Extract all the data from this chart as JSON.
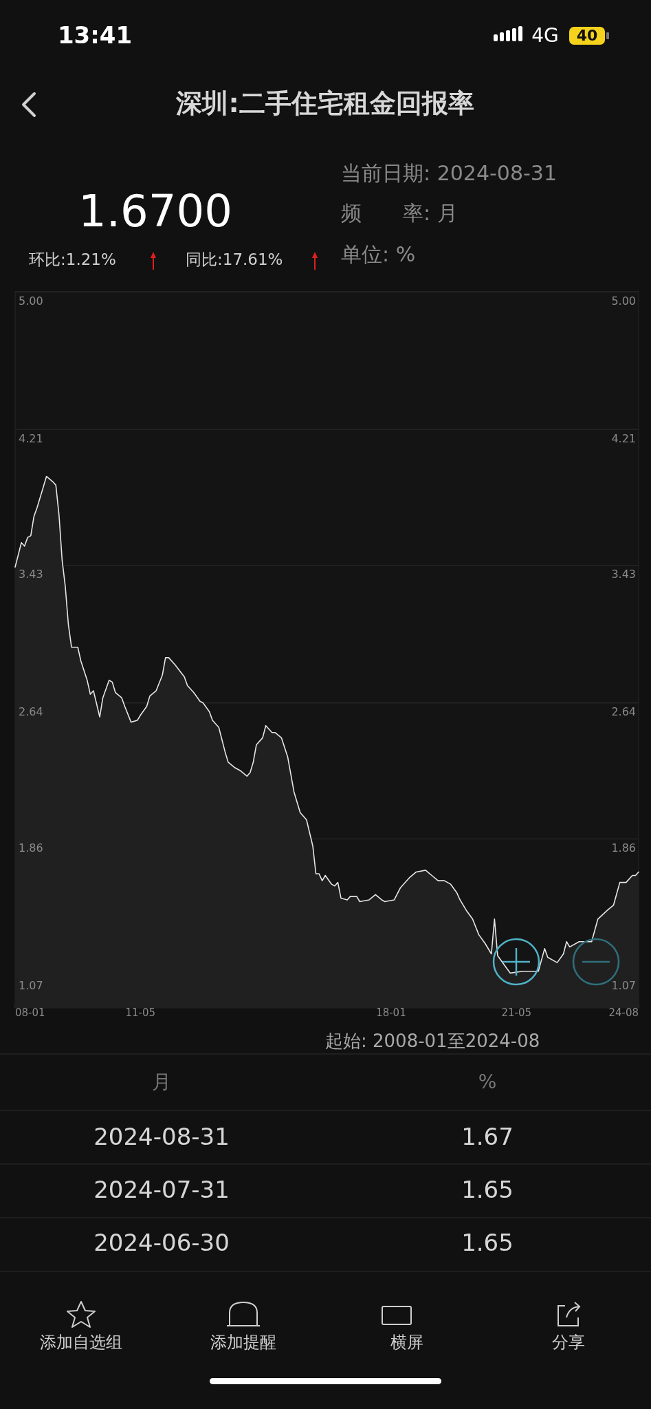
{
  "chart_data": {
    "type": "area",
    "title": "深圳:二手住宅租金回报率",
    "x": [
      "2008-01",
      "2008-03",
      "2008-04",
      "2008-05",
      "2008-06",
      "2008-07",
      "2008-08",
      "2008-10",
      "2008-11",
      "2009-01",
      "2009-02",
      "2009-03",
      "2009-04",
      "2009-05",
      "2009-06",
      "2009-07",
      "2009-09",
      "2009-10",
      "2009-12",
      "2010-01",
      "2010-02",
      "2010-04",
      "2010-05",
      "2010-07",
      "2010-08",
      "2010-09",
      "2010-11",
      "2010-12",
      "2011-02",
      "2011-04",
      "2011-05",
      "2011-07",
      "2011-08",
      "2011-10",
      "2011-12",
      "2012-01",
      "2012-02",
      "2012-04",
      "2012-07",
      "2012-08",
      "2012-10",
      "2012-12",
      "2013-01",
      "2013-03",
      "2013-04",
      "2013-06",
      "2013-08",
      "2013-09",
      "2013-11",
      "2014-01",
      "2014-03",
      "2014-04",
      "2014-05",
      "2014-06",
      "2014-08",
      "2014-09",
      "2014-11",
      "2014-12",
      "2015-02",
      "2015-04",
      "2015-06",
      "2015-08",
      "2015-10",
      "2015-12",
      "2016-01",
      "2016-02",
      "2016-03",
      "2016-04",
      "2016-06",
      "2016-07",
      "2016-08",
      "2016-09",
      "2016-11",
      "2016-12",
      "2017-02",
      "2017-03",
      "2017-06",
      "2017-08",
      "2017-10",
      "2017-11",
      "2018-02",
      "2018-04",
      "2018-07",
      "2018-09",
      "2018-12",
      "2019-02",
      "2019-04",
      "2019-06",
      "2019-08",
      "2019-10",
      "2019-11",
      "2020-01",
      "2020-03",
      "2020-05",
      "2020-07",
      "2020-09",
      "2020-10",
      "2020-11",
      "2021-01",
      "2021-03",
      "2021-07",
      "2021-12",
      "2022-02",
      "2022-03",
      "2022-06",
      "2022-08",
      "2022-09",
      "2022-10",
      "2023-01",
      "2023-03",
      "2023-05",
      "2023-07",
      "2023-10",
      "2023-12",
      "2024-02",
      "2024-04",
      "2024-06",
      "2024-07",
      "2024-08"
    ],
    "series": [
      {
        "color": "#e6e6e6",
        "values": [
          3.42,
          3.56,
          3.54,
          3.59,
          3.6,
          3.71,
          3.76,
          3.88,
          3.94,
          3.91,
          3.89,
          3.72,
          3.46,
          3.31,
          3.09,
          2.96,
          2.96,
          2.88,
          2.77,
          2.69,
          2.71,
          2.56,
          2.67,
          2.77,
          2.76,
          2.7,
          2.67,
          2.62,
          2.53,
          2.54,
          2.57,
          2.62,
          2.68,
          2.71,
          2.8,
          2.9,
          2.9,
          2.86,
          2.79,
          2.74,
          2.7,
          2.65,
          2.64,
          2.59,
          2.54,
          2.5,
          2.36,
          2.3,
          2.27,
          2.25,
          2.22,
          2.24,
          2.3,
          2.4,
          2.44,
          2.51,
          2.47,
          2.47,
          2.44,
          2.33,
          2.13,
          2.01,
          1.97,
          1.82,
          1.66,
          1.66,
          1.62,
          1.65,
          1.6,
          1.59,
          1.61,
          1.52,
          1.51,
          1.53,
          1.53,
          1.5,
          1.51,
          1.54,
          1.51,
          1.5,
          1.51,
          1.58,
          1.64,
          1.67,
          1.68,
          1.65,
          1.62,
          1.62,
          1.6,
          1.55,
          1.51,
          1.45,
          1.4,
          1.31,
          1.26,
          1.2,
          1.4,
          1.19,
          1.14,
          1.09,
          1.1,
          1.1,
          1.23,
          1.18,
          1.15,
          1.2,
          1.27,
          1.24,
          1.27,
          1.27,
          1.27,
          1.4,
          1.45,
          1.48,
          1.61,
          1.61,
          1.65,
          1.65,
          1.67
        ]
      }
    ],
    "xlim": [
      "2008-01",
      "2024-08"
    ],
    "xticks": [
      {
        "value": "2008-01",
        "label": "08-01"
      },
      {
        "value": "2011-05",
        "label": "11-05"
      },
      {
        "value": "2014-09",
        "label": null
      },
      {
        "value": "2018-01",
        "label": "18-01"
      },
      {
        "value": "2021-05",
        "label": "21-05"
      },
      {
        "value": "2024-08",
        "label": "24-08"
      }
    ],
    "ylim": [
      0.89,
      5.0
    ],
    "yticks": [
      {
        "value": 1.07,
        "label": "1.07"
      },
      {
        "value": 1.86,
        "label": "1.86"
      },
      {
        "value": 2.64,
        "label": "2.64"
      },
      {
        "value": 3.43,
        "label": "3.43"
      },
      {
        "value": 4.21,
        "label": "4.21"
      },
      {
        "value": 5.0,
        "label": "5.00"
      }
    ],
    "y2lim": [
      0.89,
      5.0
    ],
    "y2ticks": [
      {
        "value": 1.07,
        "label": "1.07"
      },
      {
        "value": 1.86,
        "label": "1.86"
      },
      {
        "value": 2.64,
        "label": "2.64"
      },
      {
        "value": 3.43,
        "label": "3.43"
      },
      {
        "value": 4.21,
        "label": "4.21"
      },
      {
        "value": 5.0,
        "label": "5.00"
      }
    ],
    "grid": "y",
    "annotations": [
      "13:41",
      "4G",
      "40",
      "1.6700",
      "环比:1.21%",
      "同比:17.61%",
      "当前日期: 2024-08-31",
      "频　　率: 月",
      "单位: %",
      "起始: 2008-01至2024-08",
      "月",
      "%",
      "2024-08-31",
      "1.67",
      "2024-07-31",
      "1.65",
      "2024-06-30",
      "1.65",
      "添加自选组",
      "添加提醒",
      "横屏",
      "分享"
    ]
  }
}
